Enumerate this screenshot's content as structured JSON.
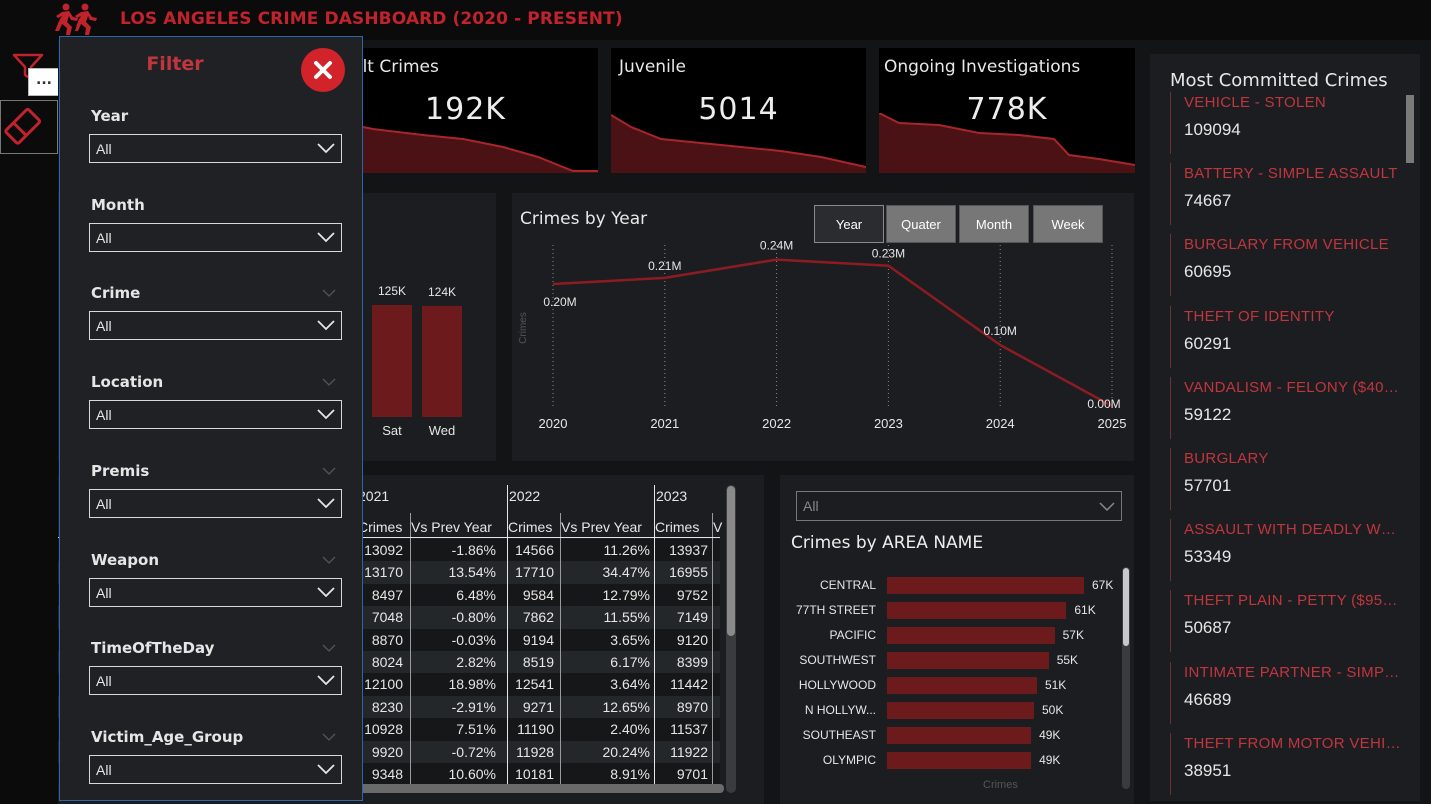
{
  "header": {
    "title": "LOS ANGELES CRIME DASHBOARD (2020 - PRESENT)"
  },
  "rail": {
    "more_label": "..."
  },
  "colors": {
    "accent": "#c0232b",
    "bar": "#6c1a1c",
    "panel": "#1c1d20"
  },
  "kpis": [
    {
      "title": "Adult Crimes",
      "visible_title": "dult Crimes",
      "value": "192K"
    },
    {
      "title": "Juvenile",
      "value": "5014"
    },
    {
      "title": "Ongoing Investigations",
      "value": "778K"
    }
  ],
  "day_chart": {
    "bars": [
      {
        "label": "Sat",
        "value": 125,
        "value_label": "125K"
      },
      {
        "label": "Wed",
        "value": 124,
        "value_label": "124K"
      }
    ]
  },
  "year_chart": {
    "title": "Crimes by Year",
    "ylabel": "Crimes",
    "buttons": [
      "Year",
      "Quater",
      "Month",
      "Week"
    ],
    "active_button": "Year"
  },
  "chart_data": [
    {
      "type": "line",
      "title": "Crimes by Year",
      "ylabel": "Crimes",
      "x": [
        "2020",
        "2021",
        "2022",
        "2023",
        "2024",
        "2025"
      ],
      "values": [
        0.2,
        0.21,
        0.24,
        0.23,
        0.1,
        0.0
      ],
      "value_labels": [
        "0.20M",
        "0.21M",
        "0.24M",
        "0.23M",
        "0.10M",
        "0.00M"
      ],
      "ylim": [
        0,
        0.3
      ]
    },
    {
      "type": "bar",
      "title": "Crimes by AREA NAME",
      "xlabel": "Crimes",
      "categories": [
        "CENTRAL",
        "77TH STREET",
        "PACIFIC",
        "SOUTHWEST",
        "HOLLYWOOD",
        "N HOLLYW...",
        "SOUTHEAST",
        "OLYMPIC"
      ],
      "values": [
        67,
        61,
        57,
        55,
        51,
        50,
        49,
        49
      ],
      "value_labels": [
        "67K",
        "61K",
        "57K",
        "55K",
        "51K",
        "50K",
        "49K",
        "49K"
      ]
    }
  ],
  "table": {
    "year_headers": [
      "2021",
      "2022",
      "2023"
    ],
    "col_headers": [
      "Crimes",
      "Vs Prev Year",
      "Crimes",
      "Vs Prev Year",
      "Crimes",
      "V"
    ],
    "rows": [
      [
        "13092",
        "-1.86%",
        "14566",
        "11.26%",
        "13937"
      ],
      [
        "13170",
        "13.54%",
        "17710",
        "34.47%",
        "16955"
      ],
      [
        "8497",
        "6.48%",
        "9584",
        "12.79%",
        "9752"
      ],
      [
        "7048",
        "-0.80%",
        "7862",
        "11.55%",
        "7149"
      ],
      [
        "8870",
        "-0.03%",
        "9194",
        "3.65%",
        "9120"
      ],
      [
        "8024",
        "2.82%",
        "8519",
        "6.17%",
        "8399"
      ],
      [
        "12100",
        "18.98%",
        "12541",
        "3.64%",
        "11442"
      ],
      [
        "8230",
        "-2.91%",
        "9271",
        "12.65%",
        "8970"
      ],
      [
        "10928",
        "7.51%",
        "11190",
        "2.40%",
        "11537"
      ],
      [
        "9920",
        "-0.72%",
        "11928",
        "20.24%",
        "11922"
      ],
      [
        "9348",
        "10.60%",
        "10181",
        "8.91%",
        "9701"
      ]
    ]
  },
  "area": {
    "select_value": "All",
    "title": "Crimes by AREA NAME",
    "xlabel": "Crimes"
  },
  "most_committed": {
    "title": "Most Committed Crimes",
    "items": [
      {
        "name": "VEHICLE - STOLEN",
        "count": "109094"
      },
      {
        "name": "BATTERY - SIMPLE ASSAULT",
        "count": "74667"
      },
      {
        "name": "BURGLARY FROM VEHICLE",
        "count": "60695"
      },
      {
        "name": "THEFT OF IDENTITY",
        "count": "60291"
      },
      {
        "name": "VANDALISM - FELONY ($400 & ...",
        "count": "59122"
      },
      {
        "name": "BURGLARY",
        "count": "57701"
      },
      {
        "name": "ASSAULT WITH DEADLY WEAP...",
        "count": "53349"
      },
      {
        "name": "THEFT PLAIN - PETTY ($950 & ...",
        "count": "50687"
      },
      {
        "name": "INTIMATE PARTNER - SIMPLE ...",
        "count": "46689"
      },
      {
        "name": "THEFT FROM MOTOR VEHICLE ...",
        "count": "38951"
      }
    ]
  },
  "filter": {
    "title": "Filter",
    "fields": [
      {
        "label": "Year",
        "value": "All"
      },
      {
        "label": "Month",
        "value": "All"
      },
      {
        "label": "Crime",
        "value": "All"
      },
      {
        "label": "Location",
        "value": "All"
      },
      {
        "label": "Premis",
        "value": "All"
      },
      {
        "label": "Weapon",
        "value": "All"
      },
      {
        "label": "TimeOfTheDay",
        "value": "All"
      },
      {
        "label": "Victim_Age_Group",
        "value": "All"
      }
    ]
  }
}
